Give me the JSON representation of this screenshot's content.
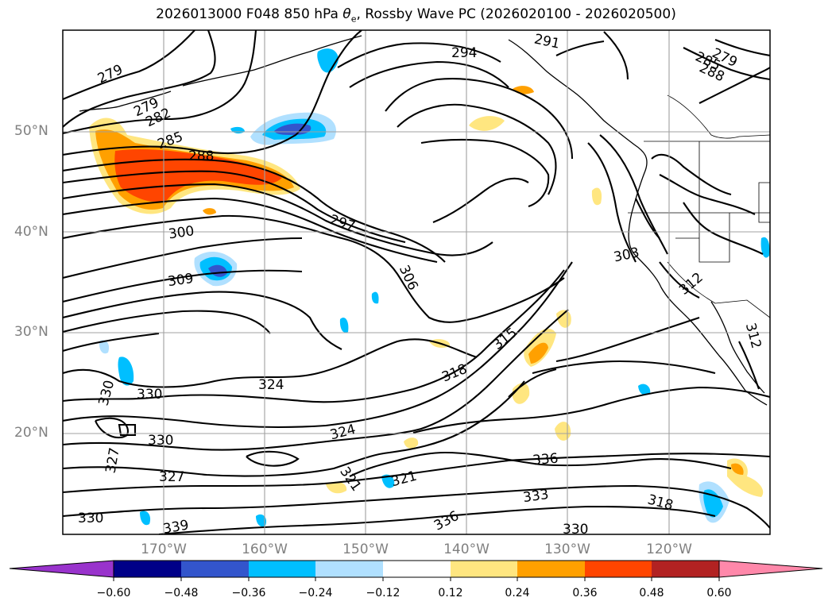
{
  "title": "2026013000 F048 850 hPa θe, Rossby Wave PC (2026020100 - 2026020500)",
  "title_parts": {
    "prefix": "2026013000 F048 850 hPa ",
    "theta": "θ",
    "sub": "e",
    "suffix": ", Rossby Wave PC (2026020100 - 2026020500)"
  },
  "latitude_labels": [
    "50°N",
    "40°N",
    "30°N",
    "20°N"
  ],
  "longitude_labels": [
    "170°W",
    "160°W",
    "150°W",
    "140°W",
    "130°W",
    "120°W"
  ],
  "colorbar": {
    "tick_labels": [
      "−0.60",
      "−0.48",
      "−0.36",
      "−0.24",
      "−0.12",
      "0.12",
      "0.24",
      "0.36",
      "0.48",
      "0.60"
    ],
    "colors": [
      "#9933cc",
      "#000088",
      "#3355cc",
      "#00bfff",
      "#b0e0ff",
      "#ffffff",
      "#ffe680",
      "#ffa000",
      "#ff4500",
      "#b22222",
      "#ff88aa"
    ]
  },
  "shading_colors": {
    "neg_light": "#b0e0ff",
    "neg_mid": "#00bfff",
    "neg_strong": "#3355cc",
    "pos_light": "#ffe680",
    "pos_mid": "#ffa000",
    "pos_strong": "#ff4500"
  },
  "contour_labels": [
    "279",
    "279",
    "282",
    "285",
    "288",
    "300",
    "297",
    "309",
    "306",
    "294",
    "291",
    "279",
    "285",
    "288",
    "303",
    "312",
    "312",
    "315",
    "318",
    "324",
    "330",
    "330",
    "330",
    "324",
    "327",
    "327",
    "321",
    "321",
    "336",
    "333",
    "336",
    "339",
    "330",
    "330",
    "318"
  ]
}
